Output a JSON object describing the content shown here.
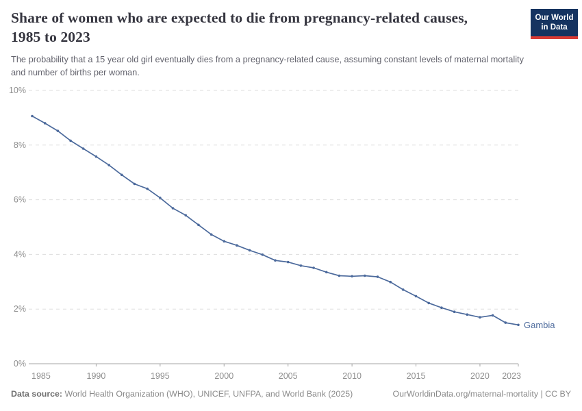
{
  "header": {
    "title": "Share of women who are expected to die from pregnancy-related causes, 1985 to 2023",
    "subtitle": "The probability that a 15 year old girl eventually dies from a pregnancy-related cause, assuming constant levels of maternal mortality and number of births per woman.",
    "logo": {
      "line1": "Our World",
      "line2": "in Data"
    }
  },
  "chart_data": {
    "type": "line",
    "x": [
      1985,
      1986,
      1987,
      1988,
      1989,
      1990,
      1991,
      1992,
      1993,
      1994,
      1995,
      1996,
      1997,
      1998,
      1999,
      2000,
      2001,
      2002,
      2003,
      2004,
      2005,
      2006,
      2007,
      2008,
      2009,
      2010,
      2011,
      2012,
      2013,
      2014,
      2015,
      2016,
      2017,
      2018,
      2019,
      2020,
      2021,
      2022,
      2023
    ],
    "series": [
      {
        "name": "Gambia",
        "color": "#4C6A9C",
        "values": [
          9.06,
          8.8,
          8.52,
          8.16,
          7.87,
          7.58,
          7.27,
          6.91,
          6.58,
          6.4,
          6.07,
          5.69,
          5.43,
          5.08,
          4.73,
          4.48,
          4.33,
          4.15,
          3.99,
          3.78,
          3.72,
          3.59,
          3.51,
          3.35,
          3.22,
          3.2,
          3.22,
          3.18,
          2.99,
          2.71,
          2.47,
          2.22,
          2.05,
          1.9,
          1.8,
          1.7,
          1.77,
          1.5,
          1.42
        ]
      }
    ],
    "title": "Share of women who are expected to die from pregnancy-related causes, 1985 to 2023",
    "xlabel": "",
    "ylabel": "",
    "xlim": [
      1985,
      2023
    ],
    "ylim": [
      0,
      10
    ],
    "xticks": [
      1985,
      1990,
      1995,
      2000,
      2005,
      2010,
      2015,
      2020,
      2023
    ],
    "yticks": [
      0,
      2,
      4,
      6,
      8,
      10
    ],
    "ytick_suffix": "%",
    "grid": "horizontal-dashed",
    "legend_position": "end-of-line"
  },
  "footer": {
    "datasource_label": "Data source:",
    "datasource_text": " World Health Organization (WHO), UNICEF, UNFPA, and World Bank (2025)",
    "attribution": "OurWorldinData.org/maternal-mortality | CC BY"
  },
  "colors": {
    "line": "#4C6A9C",
    "grid": "#DDDDDD",
    "axis": "#A5A5A5",
    "tick_label": "#8E8E8E",
    "series_label": "#4C6A9C"
  }
}
